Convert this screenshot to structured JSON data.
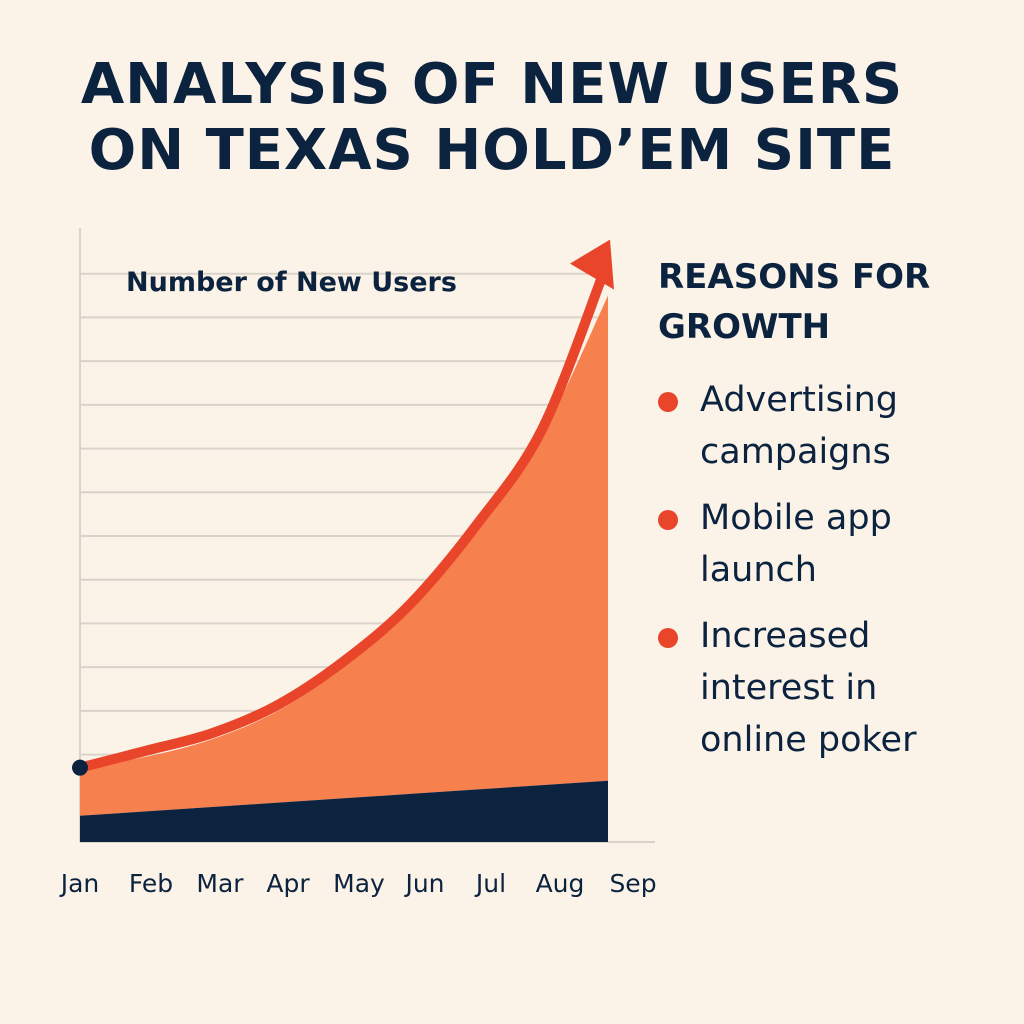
{
  "title": {
    "line1": "ANALYSIS OF NEW USERS",
    "line2": "ON TEXAS HOLD’EM SITE"
  },
  "chart_data": {
    "type": "area",
    "title": "ANALYSIS OF NEW USERS ON TEXAS HOLD’EM SITE",
    "ylabel": "Number of New Users",
    "xlabel": "",
    "categories": [
      "Jan",
      "Feb",
      "Mar",
      "Apr",
      "May",
      "Jun",
      "Jul",
      "Aug",
      "Sep"
    ],
    "series": [
      {
        "values": [
          6,
          7,
          8,
          9,
          10,
          11,
          12,
          13,
          14
        ]
      },
      {
        "values": [
          17,
          19.5,
          23.5,
          30,
          40,
          53,
          71,
          93,
          125
        ]
      }
    ],
    "ylim": [
      0,
      140
    ],
    "grid": true,
    "colors": {
      "base": "#0c2340",
      "area": "#f7804f",
      "trend": "#e8452b",
      "grid": "#d9d3cb"
    }
  },
  "reasons": {
    "heading_line1": "REASONS FOR",
    "heading_line2": "GROWTH",
    "items": [
      {
        "line1": "Advertising",
        "line2": "campaigns"
      },
      {
        "line1": "Mobile app",
        "line2": "launch"
      },
      {
        "line1": "Increased",
        "line2": "interest in",
        "line3": "online poker"
      }
    ]
  }
}
